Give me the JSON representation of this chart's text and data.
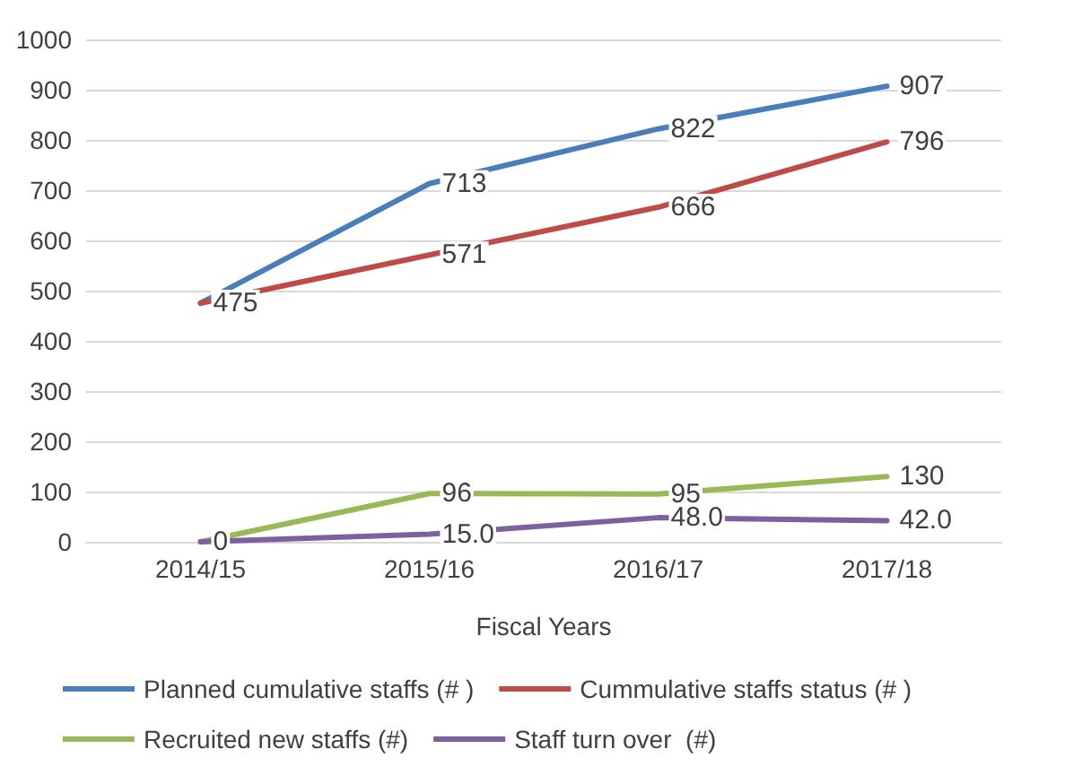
{
  "chart_data": {
    "type": "line",
    "xlabel": "Fiscal Years",
    "categories": [
      "2014/15",
      "2015/16",
      "2016/17",
      "2017/18"
    ],
    "ylim": [
      0,
      1000
    ],
    "yticks": [
      0,
      100,
      200,
      300,
      400,
      500,
      600,
      700,
      800,
      900,
      1000
    ],
    "grid": "y",
    "legend": "bottom",
    "marker": "none",
    "line_style": "solid",
    "series": [
      {
        "name": "Planned cumulative staffs (# )",
        "color": "#4a7ebb",
        "values": [
          475,
          713,
          822,
          907
        ],
        "value_labels": [
          null,
          "713",
          "822",
          "907"
        ]
      },
      {
        "name": "Cummulative staffs status (# )",
        "color": "#be4b48",
        "values": [
          475,
          571,
          666,
          796
        ],
        "value_labels": [
          "475",
          "571",
          "666",
          "796"
        ]
      },
      {
        "name": "Recruited new staffs (#)",
        "color": "#98b954",
        "values": [
          0,
          96,
          95,
          130
        ],
        "value_labels": [
          "0",
          "96",
          "95",
          "130"
        ]
      },
      {
        "name": "Staff turn over  (#)",
        "color": "#7d60a0",
        "values": [
          0,
          15,
          48,
          42
        ],
        "value_labels": [
          null,
          "15.0",
          "48.0",
          "42.0"
        ]
      }
    ]
  }
}
